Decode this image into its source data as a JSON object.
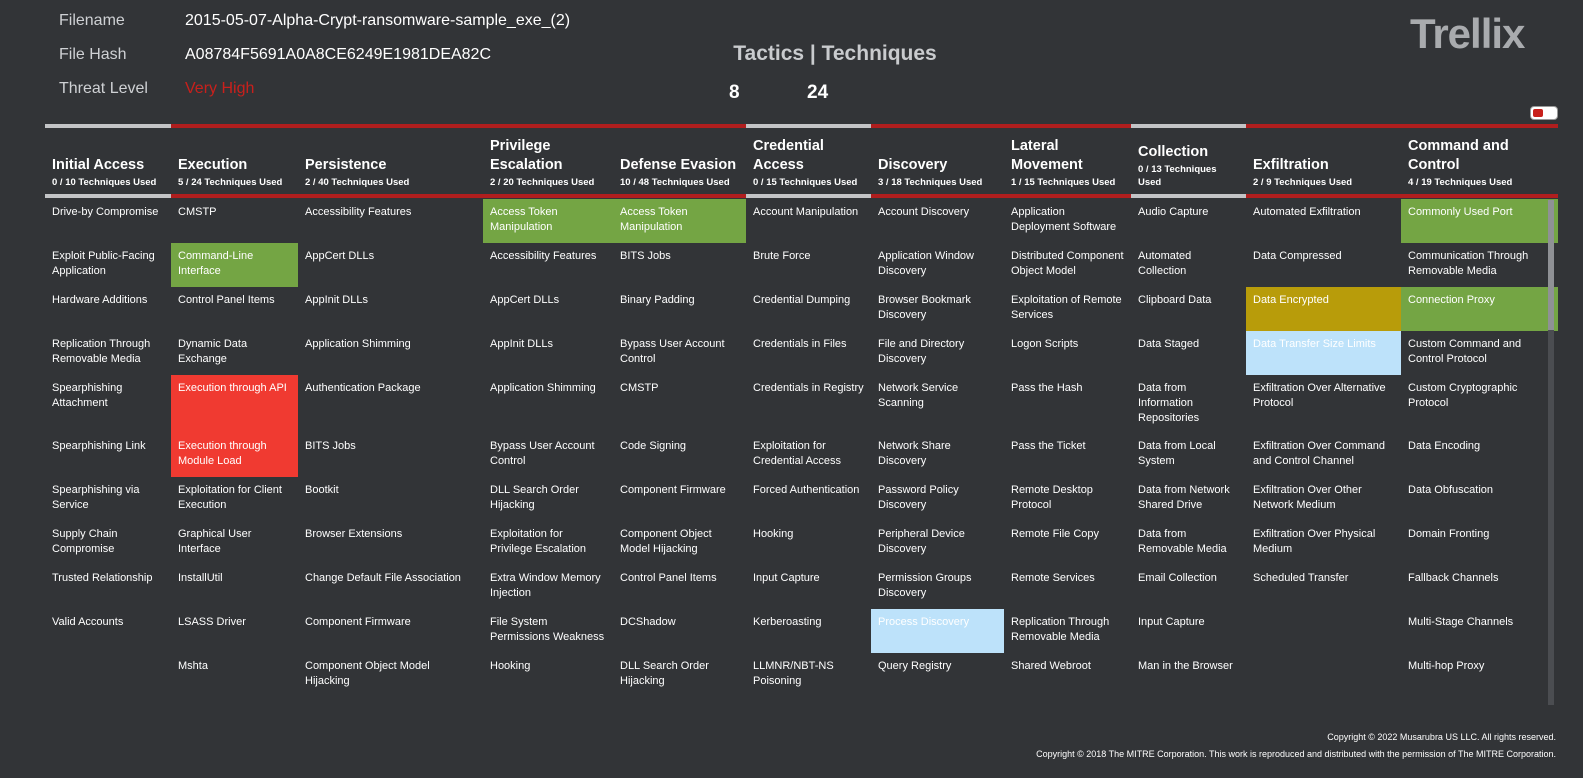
{
  "info": {
    "filename_label": "Filename",
    "filename_value": "2015-05-07-Alpha-Crypt-ransomware-sample_exe_(2)",
    "hash_label": "File Hash",
    "hash_value": "A08784F5691A0A8CE6249E1981DEA82C",
    "threat_label": "Threat Level",
    "threat_value": "Very High"
  },
  "stats": {
    "title": "Tactics | Techniques",
    "tactics": "8",
    "techniques": "24"
  },
  "logo": "Trellix",
  "colors": {
    "background": "#323437",
    "used_tactic_bar": "#b01e1e",
    "unused_tactic_bar": "#c3c4c6",
    "green": "#74a544",
    "red": "#f03a31",
    "gold": "#b89c0a",
    "light_blue": "#bde2fa"
  },
  "tactics": [
    {
      "name": "Initial Access",
      "count": "0 / 10 Techniques Used",
      "used": false
    },
    {
      "name": "Execution",
      "count": "5 / 24 Techniques Used",
      "used": true
    },
    {
      "name": "Persistence",
      "count": "2 / 40 Techniques Used",
      "used": true
    },
    {
      "name": "Privilege Escalation",
      "count": "2 / 20 Techniques Used",
      "used": true
    },
    {
      "name": "Defense Evasion",
      "count": "10 / 48 Techniques Used",
      "used": true
    },
    {
      "name": "Credential Access",
      "count": "0 / 15 Techniques Used",
      "used": false
    },
    {
      "name": "Discovery",
      "count": "3 / 18 Techniques Used",
      "used": true
    },
    {
      "name": "Lateral Movement",
      "count": "1 / 15 Techniques Used",
      "used": true
    },
    {
      "name": "Collection",
      "count": "0 / 13 Techniques Used",
      "used": false
    },
    {
      "name": "Exfiltration",
      "count": "2 / 9 Techniques Used",
      "used": true
    },
    {
      "name": "Command and Control",
      "count": "4 / 19 Techniques Used",
      "used": true
    }
  ],
  "rows": [
    [
      {
        "t": "Drive-by Compromise"
      },
      {
        "t": "CMSTP"
      },
      {
        "t": "Accessibility Features"
      },
      {
        "t": "Access Token Manipulation",
        "c": "green"
      },
      {
        "t": "Access Token Manipulation",
        "c": "green"
      },
      {
        "t": "Account Manipulation"
      },
      {
        "t": "Account Discovery"
      },
      {
        "t": "Application Deployment Software"
      },
      {
        "t": "Audio Capture"
      },
      {
        "t": "Automated Exfiltration"
      },
      {
        "t": "Commonly Used Port",
        "c": "green"
      }
    ],
    [
      {
        "t": "Exploit Public-Facing Application"
      },
      {
        "t": "Command-Line Interface",
        "c": "green"
      },
      {
        "t": "AppCert DLLs"
      },
      {
        "t": "Accessibility Features"
      },
      {
        "t": "BITS Jobs"
      },
      {
        "t": "Brute Force"
      },
      {
        "t": "Application Window Discovery"
      },
      {
        "t": "Distributed Component Object Model"
      },
      {
        "t": "Automated Collection"
      },
      {
        "t": "Data Compressed"
      },
      {
        "t": "Communication Through Removable Media"
      }
    ],
    [
      {
        "t": "Hardware Additions"
      },
      {
        "t": "Control Panel Items"
      },
      {
        "t": "AppInit DLLs"
      },
      {
        "t": "AppCert DLLs"
      },
      {
        "t": "Binary Padding"
      },
      {
        "t": "Credential Dumping"
      },
      {
        "t": "Browser Bookmark Discovery"
      },
      {
        "t": "Exploitation of Remote Services"
      },
      {
        "t": "Clipboard Data"
      },
      {
        "t": "Data Encrypted",
        "c": "gold"
      },
      {
        "t": "Connection Proxy",
        "c": "green"
      }
    ],
    [
      {
        "t": "Replication Through Removable Media"
      },
      {
        "t": "Dynamic Data Exchange"
      },
      {
        "t": "Application Shimming"
      },
      {
        "t": "AppInit DLLs"
      },
      {
        "t": "Bypass User Account Control"
      },
      {
        "t": "Credentials in Files"
      },
      {
        "t": "File and Directory Discovery"
      },
      {
        "t": "Logon Scripts"
      },
      {
        "t": "Data Staged"
      },
      {
        "t": "Data Transfer Size Limits",
        "c": "blue"
      },
      {
        "t": "Custom Command and Control Protocol"
      }
    ],
    [
      {
        "t": "Spearphishing Attachment"
      },
      {
        "t": "Execution through API",
        "c": "red"
      },
      {
        "t": "Authentication Package"
      },
      {
        "t": "Application Shimming"
      },
      {
        "t": "CMSTP"
      },
      {
        "t": "Credentials in Registry"
      },
      {
        "t": "Network Service Scanning"
      },
      {
        "t": "Pass the Hash"
      },
      {
        "t": "Data from Information Repositories"
      },
      {
        "t": "Exfiltration Over Alternative Protocol"
      },
      {
        "t": "Custom Cryptographic Protocol"
      }
    ],
    [
      {
        "t": "Spearphishing Link"
      },
      {
        "t": "Execution through Module Load",
        "c": "red"
      },
      {
        "t": "BITS Jobs"
      },
      {
        "t": "Bypass User Account Control"
      },
      {
        "t": "Code Signing"
      },
      {
        "t": "Exploitation for Credential Access"
      },
      {
        "t": "Network Share Discovery"
      },
      {
        "t": "Pass the Ticket"
      },
      {
        "t": "Data from Local System"
      },
      {
        "t": "Exfiltration Over Command and Control Channel"
      },
      {
        "t": "Data Encoding"
      }
    ],
    [
      {
        "t": "Spearphishing via Service"
      },
      {
        "t": "Exploitation for Client Execution"
      },
      {
        "t": "Bootkit"
      },
      {
        "t": "DLL Search Order Hijacking"
      },
      {
        "t": "Component Firmware"
      },
      {
        "t": "Forced Authentication"
      },
      {
        "t": "Password Policy Discovery"
      },
      {
        "t": "Remote Desktop Protocol"
      },
      {
        "t": "Data from Network Shared Drive"
      },
      {
        "t": "Exfiltration Over Other Network Medium"
      },
      {
        "t": "Data Obfuscation"
      }
    ],
    [
      {
        "t": "Supply Chain Compromise"
      },
      {
        "t": "Graphical User Interface"
      },
      {
        "t": "Browser Extensions"
      },
      {
        "t": "Exploitation for Privilege Escalation"
      },
      {
        "t": "Component Object Model Hijacking"
      },
      {
        "t": "Hooking"
      },
      {
        "t": "Peripheral Device Discovery"
      },
      {
        "t": "Remote File Copy"
      },
      {
        "t": "Data from Removable Media"
      },
      {
        "t": "Exfiltration Over Physical Medium"
      },
      {
        "t": "Domain Fronting"
      }
    ],
    [
      {
        "t": "Trusted Relationship"
      },
      {
        "t": "InstallUtil"
      },
      {
        "t": "Change Default File Association"
      },
      {
        "t": "Extra Window Memory Injection"
      },
      {
        "t": "Control Panel Items"
      },
      {
        "t": "Input Capture"
      },
      {
        "t": "Permission Groups Discovery"
      },
      {
        "t": "Remote Services"
      },
      {
        "t": "Email Collection"
      },
      {
        "t": "Scheduled Transfer"
      },
      {
        "t": "Fallback Channels"
      }
    ],
    [
      {
        "t": "Valid Accounts"
      },
      {
        "t": "LSASS Driver"
      },
      {
        "t": "Component Firmware"
      },
      {
        "t": "File System Permissions Weakness"
      },
      {
        "t": "DCShadow"
      },
      {
        "t": "Kerberoasting"
      },
      {
        "t": "Process Discovery",
        "c": "blue"
      },
      {
        "t": "Replication Through Removable Media"
      },
      {
        "t": "Input Capture"
      },
      {
        "t": ""
      },
      {
        "t": "Multi-Stage Channels"
      }
    ],
    [
      {
        "t": ""
      },
      {
        "t": "Mshta"
      },
      {
        "t": "Component Object Model Hijacking"
      },
      {
        "t": "Hooking"
      },
      {
        "t": "DLL Search Order Hijacking"
      },
      {
        "t": "LLMNR/NBT-NS Poisoning"
      },
      {
        "t": "Query Registry"
      },
      {
        "t": "Shared Webroot"
      },
      {
        "t": "Man in the Browser"
      },
      {
        "t": ""
      },
      {
        "t": "Multi-hop Proxy"
      }
    ]
  ],
  "copyright": {
    "line1": "Copyright ©  2022 Musarubra US LLC. All rights reserved.",
    "line2": "Copyright © 2018 The MITRE Corporation. This work is reproduced and distributed with the permission of The MITRE Corporation."
  }
}
